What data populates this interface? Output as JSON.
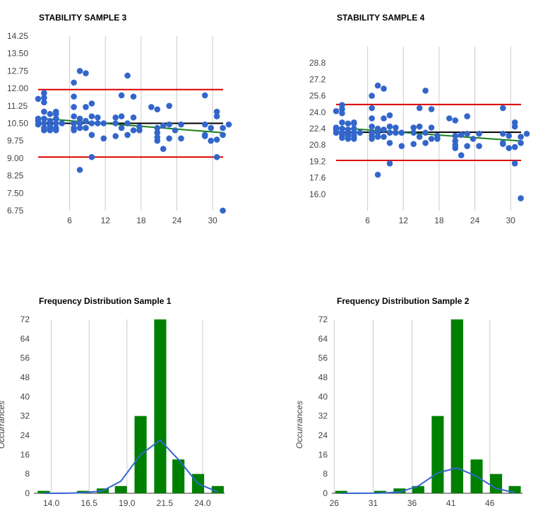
{
  "colors": {
    "points": "#3366cc",
    "limits": "#dd0000",
    "mean": "#000000",
    "trend": "#1a7f1a",
    "bars": "#008000",
    "curve": "#3366cc",
    "grid": "#cccccc"
  },
  "chart_data": [
    {
      "type": "scatter",
      "title": "STABILITY SAMPLE 3",
      "xlabel": "",
      "ylabel": "",
      "xlim": [
        0,
        32
      ],
      "ylim": [
        6.75,
        14.25
      ],
      "x_ticks": [
        "6",
        "12",
        "18",
        "24",
        "30"
      ],
      "x_tick_values": [
        6,
        12,
        18,
        24,
        30
      ],
      "y_ticks": [
        "14.25",
        "13.50",
        "12.75",
        "12.00",
        "11.25",
        "10.50",
        "9.75",
        "9.00",
        "8.25",
        "7.50",
        "6.75"
      ],
      "y_tick_values": [
        14.25,
        13.5,
        12.75,
        12.0,
        11.25,
        10.5,
        9.75,
        9.0,
        8.25,
        7.5,
        6.75
      ],
      "upper_limit": 11.95,
      "lower_limit": 9.05,
      "mean": 10.5,
      "trend": [
        [
          0,
          10.72
        ],
        [
          32,
          10.1
        ]
      ],
      "points": [
        [
          0,
          10.6
        ],
        [
          0,
          10.45
        ],
        [
          0,
          10.7
        ],
        [
          0,
          11.55
        ],
        [
          1,
          10.2
        ],
        [
          1,
          10.5
        ],
        [
          1,
          11.4
        ],
        [
          1,
          11.6
        ],
        [
          1,
          11.8
        ],
        [
          1,
          10.3
        ],
        [
          1,
          11.0
        ],
        [
          1,
          10.7
        ],
        [
          2,
          10.4
        ],
        [
          2,
          10.6
        ],
        [
          2,
          10.3
        ],
        [
          2,
          10.9
        ],
        [
          2,
          10.2
        ],
        [
          3,
          10.5
        ],
        [
          3,
          10.3
        ],
        [
          3,
          10.7
        ],
        [
          3,
          11.0
        ],
        [
          3,
          10.9
        ],
        [
          3,
          10.2
        ],
        [
          4,
          10.5
        ],
        [
          6,
          12.25
        ],
        [
          6,
          11.65
        ],
        [
          6,
          11.2
        ],
        [
          6,
          10.8
        ],
        [
          6,
          10.5
        ],
        [
          6,
          10.3
        ],
        [
          6,
          10.2
        ],
        [
          7,
          12.75
        ],
        [
          7,
          10.7
        ],
        [
          7,
          10.5
        ],
        [
          7,
          10.3
        ],
        [
          7,
          8.5
        ],
        [
          8,
          12.65
        ],
        [
          8,
          11.2
        ],
        [
          8,
          10.6
        ],
        [
          8,
          10.3
        ],
        [
          9,
          11.35
        ],
        [
          9,
          10.5
        ],
        [
          9,
          10.8
        ],
        [
          9,
          10.0
        ],
        [
          9,
          9.05
        ],
        [
          10,
          10.5
        ],
        [
          10,
          10.75
        ],
        [
          11,
          10.5
        ],
        [
          11,
          9.85
        ],
        [
          13,
          10.75
        ],
        [
          13,
          10.5
        ],
        [
          13,
          9.95
        ],
        [
          14,
          11.7
        ],
        [
          14,
          10.8
        ],
        [
          14,
          10.3
        ],
        [
          15,
          12.55
        ],
        [
          15,
          10.5
        ],
        [
          15,
          10.0
        ],
        [
          16,
          10.2
        ],
        [
          16,
          10.75
        ],
        [
          16,
          11.65
        ],
        [
          17,
          10.2
        ],
        [
          17,
          10.35
        ],
        [
          19,
          11.2
        ],
        [
          20,
          11.1
        ],
        [
          20,
          10.1
        ],
        [
          20,
          9.75
        ],
        [
          20,
          9.9
        ],
        [
          20,
          10.3
        ],
        [
          21,
          9.4
        ],
        [
          21,
          10.4
        ],
        [
          22,
          10.45
        ],
        [
          22,
          9.85
        ],
        [
          22,
          11.25
        ],
        [
          23,
          10.2
        ],
        [
          24,
          10.45
        ],
        [
          24,
          9.85
        ],
        [
          28,
          11.7
        ],
        [
          28,
          10.45
        ],
        [
          28,
          10.0
        ],
        [
          28,
          9.95
        ],
        [
          29,
          9.75
        ],
        [
          29,
          10.3
        ],
        [
          30,
          11.0
        ],
        [
          30,
          10.8
        ],
        [
          30,
          9.05
        ],
        [
          30,
          9.8
        ],
        [
          31,
          10.0
        ],
        [
          31,
          10.3
        ],
        [
          31,
          6.75
        ],
        [
          32,
          10.45
        ]
      ]
    },
    {
      "type": "scatter",
      "title": "STABILITY SAMPLE 4",
      "xlabel": "",
      "ylabel": "",
      "xlim": [
        0,
        32
      ],
      "ylim": [
        14.4,
        30.4
      ],
      "x_ticks": [
        "6",
        "12",
        "18",
        "24",
        "30"
      ],
      "x_tick_values": [
        6,
        12,
        18,
        24,
        30
      ],
      "y_ticks": [
        "28.8",
        "27.2",
        "25.6",
        "24.0",
        "22.4",
        "20.8",
        "19.2",
        "17.6",
        "16.0"
      ],
      "y_tick_values": [
        28.8,
        27.2,
        25.6,
        24.0,
        22.4,
        20.8,
        19.2,
        17.6,
        16.0
      ],
      "upper_limit": 24.75,
      "lower_limit": 19.3,
      "mean": 22.05,
      "trend": [
        [
          0,
          22.5
        ],
        [
          32,
          21.2
        ]
      ],
      "points": [
        [
          0,
          22.5
        ],
        [
          0,
          22.0
        ],
        [
          0,
          22.3
        ],
        [
          0,
          24.1
        ],
        [
          1,
          21.5
        ],
        [
          1,
          22.0
        ],
        [
          1,
          23.9
        ],
        [
          1,
          24.3
        ],
        [
          1,
          24.7
        ],
        [
          1,
          21.8
        ],
        [
          1,
          23.0
        ],
        [
          1,
          22.4
        ],
        [
          2,
          21.9
        ],
        [
          2,
          22.3
        ],
        [
          2,
          21.7
        ],
        [
          2,
          22.9
        ],
        [
          2,
          21.4
        ],
        [
          3,
          22.0
        ],
        [
          3,
          21.7
        ],
        [
          3,
          22.4
        ],
        [
          3,
          23.0
        ],
        [
          3,
          22.9
        ],
        [
          3,
          21.4
        ],
        [
          4,
          22.0
        ],
        [
          6,
          25.6
        ],
        [
          6,
          24.4
        ],
        [
          6,
          23.4
        ],
        [
          6,
          22.6
        ],
        [
          6,
          22.0
        ],
        [
          6,
          21.7
        ],
        [
          6,
          21.4
        ],
        [
          7,
          26.6
        ],
        [
          7,
          22.4
        ],
        [
          7,
          22.0
        ],
        [
          7,
          21.6
        ],
        [
          7,
          17.9
        ],
        [
          8,
          26.3
        ],
        [
          8,
          23.4
        ],
        [
          8,
          22.3
        ],
        [
          8,
          21.6
        ],
        [
          9,
          23.7
        ],
        [
          9,
          22.0
        ],
        [
          9,
          22.6
        ],
        [
          9,
          21.0
        ],
        [
          9,
          19.0
        ],
        [
          10,
          22.0
        ],
        [
          10,
          22.5
        ],
        [
          11,
          22.0
        ],
        [
          11,
          20.7
        ],
        [
          13,
          22.5
        ],
        [
          13,
          22.0
        ],
        [
          13,
          20.9
        ],
        [
          14,
          24.4
        ],
        [
          14,
          22.6
        ],
        [
          14,
          21.6
        ],
        [
          15,
          26.1
        ],
        [
          15,
          22.0
        ],
        [
          15,
          21.0
        ],
        [
          16,
          21.4
        ],
        [
          16,
          22.5
        ],
        [
          16,
          24.3
        ],
        [
          17,
          21.4
        ],
        [
          17,
          21.7
        ],
        [
          19,
          23.4
        ],
        [
          20,
          23.2
        ],
        [
          20,
          21.2
        ],
        [
          20,
          20.5
        ],
        [
          20,
          20.8
        ],
        [
          20,
          21.7
        ],
        [
          21,
          19.8
        ],
        [
          21,
          21.8
        ],
        [
          22,
          21.9
        ],
        [
          22,
          20.7
        ],
        [
          22,
          23.6
        ],
        [
          23,
          21.4
        ],
        [
          24,
          21.9
        ],
        [
          24,
          20.7
        ],
        [
          28,
          24.4
        ],
        [
          28,
          21.9
        ],
        [
          28,
          21.0
        ],
        [
          28,
          20.9
        ],
        [
          29,
          20.5
        ],
        [
          29,
          21.7
        ],
        [
          30,
          23.0
        ],
        [
          30,
          22.6
        ],
        [
          30,
          19.0
        ],
        [
          30,
          20.6
        ],
        [
          31,
          21.0
        ],
        [
          31,
          21.6
        ],
        [
          31,
          15.6
        ],
        [
          32,
          21.9
        ]
      ]
    },
    {
      "type": "bar",
      "title": "Frequency Distribution Sample 1",
      "xlabel": "",
      "ylabel": "Occurrances",
      "xlim": [
        12.85,
        25.45
      ],
      "ylim": [
        0,
        72
      ],
      "x_ticks": [
        "14.0",
        "16.5",
        "19.0",
        "21.5",
        "24.0"
      ],
      "x_tick_values": [
        14.0,
        16.5,
        19.0,
        21.5,
        24.0
      ],
      "y_ticks": [
        "72",
        "64",
        "56",
        "48",
        "40",
        "32",
        "24",
        "16",
        "8",
        "0"
      ],
      "y_tick_values": [
        72,
        64,
        56,
        48,
        40,
        32,
        24,
        16,
        8,
        0
      ],
      "bin_width": 0.8,
      "bar_x": [
        13.5,
        16.1,
        17.4,
        18.6,
        19.9,
        21.2,
        22.4,
        23.7,
        25.0
      ],
      "values": [
        1,
        1,
        2,
        3,
        32,
        72,
        14,
        8,
        3
      ],
      "curve": [
        [
          13.5,
          0
        ],
        [
          14.8,
          0
        ],
        [
          16.1,
          0.2
        ],
        [
          17.4,
          1
        ],
        [
          18.6,
          5
        ],
        [
          19.9,
          16
        ],
        [
          21.2,
          22
        ],
        [
          22.4,
          14
        ],
        [
          23.7,
          4
        ],
        [
          25.0,
          0.5
        ]
      ]
    },
    {
      "type": "bar",
      "title": "Frequency Distribution Sample 2",
      "xlabel": "",
      "ylabel": "Occurrances",
      "xlim": [
        25.7,
        50.2
      ],
      "ylim": [
        0,
        72
      ],
      "x_ticks": [
        "26",
        "31",
        "36",
        "41",
        "46"
      ],
      "x_tick_values": [
        26,
        31,
        36,
        41,
        46
      ],
      "y_ticks": [
        "72",
        "64",
        "56",
        "48",
        "40",
        "32",
        "24",
        "16",
        "8",
        "0"
      ],
      "y_tick_values": [
        72,
        64,
        56,
        48,
        40,
        32,
        24,
        16,
        8,
        0
      ],
      "bin_width": 1.55,
      "bar_x": [
        26.9,
        31.9,
        34.4,
        36.8,
        39.3,
        41.8,
        44.3,
        46.8,
        49.2
      ],
      "values": [
        1,
        1,
        2,
        3,
        32,
        72,
        14,
        8,
        3
      ],
      "curve": [
        [
          26.9,
          0
        ],
        [
          29.4,
          0
        ],
        [
          31.9,
          0.1
        ],
        [
          34.4,
          0.5
        ],
        [
          36.8,
          3
        ],
        [
          39.3,
          8.5
        ],
        [
          41.8,
          10.5
        ],
        [
          44.3,
          7
        ],
        [
          46.8,
          2
        ],
        [
          49.2,
          0.3
        ]
      ]
    }
  ]
}
